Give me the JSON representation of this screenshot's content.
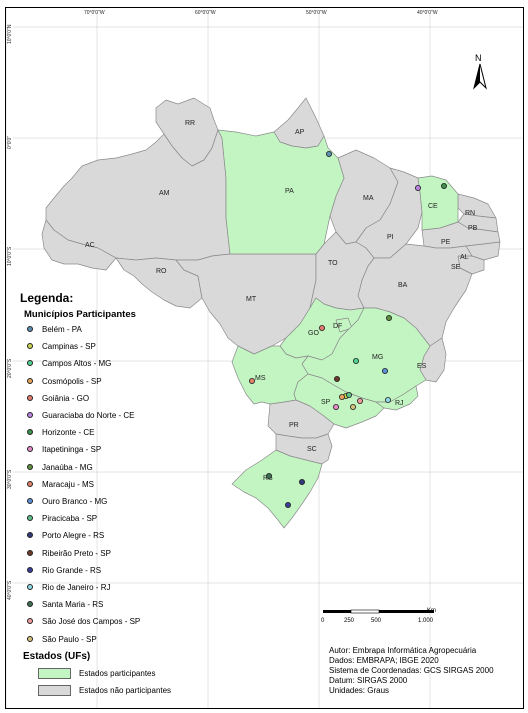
{
  "longitude_ticks": [
    "70°0'0\"W",
    "60°0'0\"W",
    "50°0'0\"W",
    "40°0'0\"W"
  ],
  "latitude_ticks": [
    "10°0'0\"N",
    "0°0'0\"",
    "10°0'0\"S",
    "20°0'0\"S",
    "30°0'0\"S",
    "40°0'0\"S"
  ],
  "north_arrow_label": "N",
  "legend": {
    "title": "Legenda:",
    "subtitle": "Municípios Participantes",
    "items": [
      {
        "label": "Belém - PA",
        "color": "#5b8fb0"
      },
      {
        "label": "Campinas - SP",
        "color": "#c7d64d"
      },
      {
        "label": "Campos Altos - MG",
        "color": "#50d290"
      },
      {
        "label": "Cosmópolis - SP",
        "color": "#e8a45a"
      },
      {
        "label": "Goiânia - GO",
        "color": "#e37a6e"
      },
      {
        "label": "Guaraciaba do Norte - CE",
        "color": "#b782e0"
      },
      {
        "label": "Horizonte - CE",
        "color": "#3f8f4a"
      },
      {
        "label": "Itapetininga - SP",
        "color": "#e68cc8"
      },
      {
        "label": "Janaúba - MG",
        "color": "#5f8f3c"
      },
      {
        "label": "Maracaju - MS",
        "color": "#e2806a"
      },
      {
        "label": "Ouro Branco - MG",
        "color": "#5f8fd6"
      },
      {
        "label": "Piracicaba - SP",
        "color": "#5cbf8a"
      },
      {
        "label": "Porto Alegre - RS",
        "color": "#313a7a"
      },
      {
        "label": "Ribeirão Preto - SP",
        "color": "#6b3a28"
      },
      {
        "label": "Rio Grande - RS",
        "color": "#3c3f9a"
      },
      {
        "label": "Rio de Janeiro - RJ",
        "color": "#8fd8e4"
      },
      {
        "label": "Santa Maria - RS",
        "color": "#3f6f52"
      },
      {
        "label": "São José dos Campos - SP",
        "color": "#ee9a9a"
      },
      {
        "label": "São Paulo - SP",
        "color": "#d3c07a"
      }
    ]
  },
  "estados_legend": {
    "title": "Estados (UFs)",
    "items": [
      {
        "label": "Estados participantes",
        "color": "#c3f5c3"
      },
      {
        "label": "Estados não participantes",
        "color": "#d9d9d9"
      }
    ]
  },
  "scale_bar": {
    "ticks": [
      "0",
      "250",
      "500",
      "1.000"
    ],
    "unit": "Km"
  },
  "credits": [
    "Autor: Embrapa Informática Agropecuária",
    "Dados: EMBRAPA; IBGE 2020",
    "Sistema de Coordenadas: GCS SIRGAS 2000",
    "Datum: SIRGAS 2000",
    "Unidades: Graus"
  ],
  "states": {
    "participating": [
      "PA",
      "CE",
      "GO",
      "DF",
      "MG",
      "MS",
      "SP",
      "RJ",
      "RS"
    ],
    "labels": [
      "RR",
      "AP",
      "AM",
      "PA",
      "MA",
      "CE",
      "RN",
      "PB",
      "PE",
      "AL",
      "SE",
      "PI",
      "AC",
      "RO",
      "TO",
      "BA",
      "MT",
      "GO",
      "DF",
      "MG",
      "ES",
      "MS",
      "SP",
      "RJ",
      "PR",
      "SC",
      "RS"
    ]
  },
  "colors": {
    "participating_fill": "#c3f5c3",
    "nonparticipating_fill": "#d9d9d9",
    "border": "#8a8a8a",
    "grid": "#bbbbbb"
  }
}
